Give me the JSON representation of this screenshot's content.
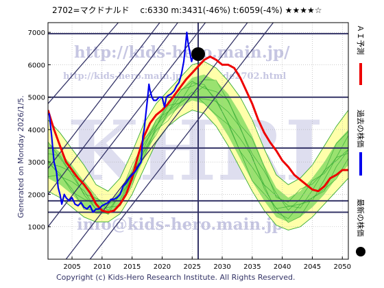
{
  "header": {
    "text": "2702=マクドナルド　 c:6330  m:3431(-46%)  t:6059(-4%)  ★★★★☆"
  },
  "side_label": "Generated on Monday 2026/1/5.",
  "footer": "Copyright (c) Kids-Hero Research Institute. All Rights Reserved.",
  "watermarks": {
    "url_top": "http://kids-hero.main.jp/",
    "url_mid": "http://kids-hero.main.jp/code/code2702.html",
    "big": "KHRI",
    "email": "info@kids-hero.main.jp"
  },
  "legend": {
    "ai": "ＡＩ予測",
    "past": "過去の株価",
    "latest": "最新の株価"
  },
  "colors": {
    "price": "#0000ee",
    "ai": "#ee0000",
    "band_outer": "#ffffaa",
    "band_inner": "#88dd66",
    "band_line": "#33aa33",
    "hline": "#333366",
    "diag": "#333366",
    "dot": "#000000",
    "grid": "#aaaaaa"
  },
  "chart_data": {
    "type": "line",
    "title": "",
    "xlabel": "",
    "ylabel": "",
    "xlim": [
      2001,
      2051
    ],
    "ylim": [
      0,
      7300
    ],
    "xticks": [
      2005,
      2010,
      2015,
      2020,
      2025,
      2030,
      2035,
      2040,
      2045,
      2050
    ],
    "yticks": [
      1000,
      2000,
      3000,
      4000,
      5000,
      6000,
      7000
    ],
    "grid": true,
    "legend_position": "right",
    "horizontal_lines": [
      6960,
      5000,
      3431,
      1800,
      1450
    ],
    "vertical_line_x": 2026.0,
    "latest_point": {
      "x": 2026.0,
      "y": 6330
    },
    "diagonal_lines": [
      {
        "p1": [
          2001,
          1000
        ],
        "p2": [
          2027.2,
          7300
        ]
      },
      {
        "p1": [
          2001,
          2000
        ],
        "p2": [
          2022.6,
          7300
        ]
      },
      {
        "p1": [
          2001,
          2800
        ],
        "p2": [
          2019.6,
          7300
        ]
      },
      {
        "p1": [
          2001,
          4800
        ],
        "p2": [
          2012.7,
          7300
        ]
      },
      {
        "p1": [
          2008,
          0
        ],
        "p2": [
          2038.5,
          7300
        ]
      },
      {
        "p1": [
          2004,
          0
        ],
        "p2": [
          2034.2,
          7300
        ]
      }
    ],
    "band_outer_upper": [
      [
        2001,
        4300
      ],
      [
        2003,
        3900
      ],
      [
        2005,
        3400
      ],
      [
        2007,
        2900
      ],
      [
        2009,
        2300
      ],
      [
        2011,
        2100
      ],
      [
        2013,
        2500
      ],
      [
        2015,
        3300
      ],
      [
        2017,
        4200
      ],
      [
        2019,
        4800
      ],
      [
        2021,
        5200
      ],
      [
        2023,
        5600
      ],
      [
        2025,
        6000
      ],
      [
        2027,
        6100
      ],
      [
        2029,
        5900
      ],
      [
        2031,
        5500
      ],
      [
        2033,
        5000
      ],
      [
        2035,
        4300
      ],
      [
        2037,
        3400
      ],
      [
        2039,
        2600
      ],
      [
        2041,
        2300
      ],
      [
        2043,
        2500
      ],
      [
        2045,
        2900
      ],
      [
        2047,
        3500
      ],
      [
        2049,
        4100
      ],
      [
        2051,
        4600
      ]
    ],
    "band_outer_lower": [
      [
        2001,
        2100
      ],
      [
        2003,
        1900
      ],
      [
        2005,
        1600
      ],
      [
        2007,
        1300
      ],
      [
        2009,
        1150
      ],
      [
        2011,
        1150
      ],
      [
        2013,
        1400
      ],
      [
        2015,
        2000
      ],
      [
        2017,
        2800
      ],
      [
        2019,
        3600
      ],
      [
        2021,
        4100
      ],
      [
        2023,
        4400
      ],
      [
        2025,
        4600
      ],
      [
        2027,
        4500
      ],
      [
        2029,
        4100
      ],
      [
        2031,
        3500
      ],
      [
        2033,
        2800
      ],
      [
        2035,
        2100
      ],
      [
        2037,
        1500
      ],
      [
        2039,
        1050
      ],
      [
        2041,
        900
      ],
      [
        2043,
        1000
      ],
      [
        2045,
        1300
      ],
      [
        2047,
        1700
      ],
      [
        2049,
        2100
      ],
      [
        2051,
        2500
      ]
    ],
    "band_inner_upper": [
      [
        2001,
        3600
      ],
      [
        2003,
        3300
      ],
      [
        2005,
        2900
      ],
      [
        2007,
        2400
      ],
      [
        2009,
        1900
      ],
      [
        2011,
        1700
      ],
      [
        2013,
        2100
      ],
      [
        2015,
        2800
      ],
      [
        2017,
        3700
      ],
      [
        2019,
        4300
      ],
      [
        2021,
        4800
      ],
      [
        2023,
        5200
      ],
      [
        2025,
        5600
      ],
      [
        2027,
        5700
      ],
      [
        2029,
        5500
      ],
      [
        2031,
        5100
      ],
      [
        2033,
        4500
      ],
      [
        2035,
        3800
      ],
      [
        2037,
        2900
      ],
      [
        2039,
        2200
      ],
      [
        2041,
        1900
      ],
      [
        2043,
        2100
      ],
      [
        2045,
        2500
      ],
      [
        2047,
        3000
      ],
      [
        2049,
        3600
      ],
      [
        2051,
        4000
      ]
    ],
    "band_inner_lower": [
      [
        2001,
        2500
      ],
      [
        2003,
        2300
      ],
      [
        2005,
        2000
      ],
      [
        2007,
        1600
      ],
      [
        2009,
        1400
      ],
      [
        2011,
        1400
      ],
      [
        2013,
        1700
      ],
      [
        2015,
        2300
      ],
      [
        2017,
        3100
      ],
      [
        2019,
        3900
      ],
      [
        2021,
        4400
      ],
      [
        2023,
        4700
      ],
      [
        2025,
        4900
      ],
      [
        2027,
        4800
      ],
      [
        2029,
        4400
      ],
      [
        2031,
        3800
      ],
      [
        2033,
        3100
      ],
      [
        2035,
        2400
      ],
      [
        2037,
        1800
      ],
      [
        2039,
        1300
      ],
      [
        2041,
        1150
      ],
      [
        2043,
        1300
      ],
      [
        2045,
        1600
      ],
      [
        2047,
        2000
      ],
      [
        2049,
        2500
      ],
      [
        2051,
        2900
      ]
    ],
    "series": [
      {
        "name": "過去の株価",
        "color": "#0000ee",
        "points": [
          [
            2001.2,
            4500
          ],
          [
            2001.6,
            3800
          ],
          [
            2002,
            3000
          ],
          [
            2002.4,
            2700
          ],
          [
            2002.7,
            2200
          ],
          [
            2003,
            2000
          ],
          [
            2003.3,
            1700
          ],
          [
            2003.7,
            2000
          ],
          [
            2004,
            1900
          ],
          [
            2004.5,
            1800
          ],
          [
            2005,
            1900
          ],
          [
            2005.5,
            1700
          ],
          [
            2006,
            1650
          ],
          [
            2006.5,
            1750
          ],
          [
            2007,
            1600
          ],
          [
            2007.5,
            1550
          ],
          [
            2008,
            1650
          ],
          [
            2008.5,
            1450
          ],
          [
            2009,
            1550
          ],
          [
            2009.5,
            1550
          ],
          [
            2010,
            1650
          ],
          [
            2010.5,
            1700
          ],
          [
            2011,
            1750
          ],
          [
            2011.5,
            1850
          ],
          [
            2012,
            1850
          ],
          [
            2012.5,
            1900
          ],
          [
            2013,
            2000
          ],
          [
            2013.5,
            2250
          ],
          [
            2014,
            2350
          ],
          [
            2014.5,
            2500
          ],
          [
            2015,
            2600
          ],
          [
            2015.5,
            2700
          ],
          [
            2016,
            2850
          ],
          [
            2016.5,
            3000
          ],
          [
            2016.8,
            3800
          ],
          [
            2017,
            4000
          ],
          [
            2017.3,
            4500
          ],
          [
            2017.6,
            5000
          ],
          [
            2017.8,
            5400
          ],
          [
            2018,
            5200
          ],
          [
            2018.3,
            5000
          ],
          [
            2018.6,
            4900
          ],
          [
            2019,
            4900
          ],
          [
            2019.5,
            5000
          ],
          [
            2020,
            5000
          ],
          [
            2020.4,
            4700
          ],
          [
            2020.7,
            5000
          ],
          [
            2021,
            5050
          ],
          [
            2021.5,
            5100
          ],
          [
            2022,
            5200
          ],
          [
            2022.4,
            5350
          ],
          [
            2022.8,
            5450
          ],
          [
            2023.2,
            5700
          ],
          [
            2023.6,
            6100
          ],
          [
            2023.9,
            6600
          ],
          [
            2024.1,
            7000
          ],
          [
            2024.3,
            6700
          ],
          [
            2024.6,
            6400
          ],
          [
            2024.9,
            6100
          ],
          [
            2025.2,
            6300
          ],
          [
            2025.5,
            6200
          ],
          [
            2025.8,
            6300
          ],
          [
            2026.0,
            6330
          ]
        ]
      },
      {
        "name": "ＡＩ予測",
        "color": "#ee0000",
        "points": [
          [
            2001,
            4600
          ],
          [
            2002,
            4000
          ],
          [
            2003,
            3500
          ],
          [
            2004,
            3000
          ],
          [
            2005,
            2750
          ],
          [
            2006,
            2500
          ],
          [
            2007,
            2300
          ],
          [
            2008,
            2050
          ],
          [
            2009,
            1700
          ],
          [
            2010,
            1500
          ],
          [
            2011,
            1450
          ],
          [
            2012,
            1500
          ],
          [
            2013,
            1700
          ],
          [
            2014,
            2000
          ],
          [
            2015,
            2500
          ],
          [
            2016,
            3200
          ],
          [
            2017,
            3800
          ],
          [
            2018,
            4200
          ],
          [
            2019,
            4450
          ],
          [
            2020,
            4600
          ],
          [
            2021,
            4800
          ],
          [
            2022,
            5050
          ],
          [
            2023,
            5300
          ],
          [
            2024,
            5550
          ],
          [
            2025,
            5750
          ],
          [
            2026,
            5950
          ],
          [
            2027,
            6150
          ],
          [
            2028,
            6250
          ],
          [
            2029,
            6150
          ],
          [
            2030,
            6000
          ],
          [
            2031,
            6000
          ],
          [
            2032,
            5900
          ],
          [
            2033,
            5600
          ],
          [
            2034,
            5200
          ],
          [
            2035,
            4800
          ],
          [
            2036,
            4300
          ],
          [
            2037,
            3900
          ],
          [
            2038,
            3600
          ],
          [
            2039,
            3350
          ],
          [
            2040,
            3050
          ],
          [
            2041,
            2850
          ],
          [
            2042,
            2600
          ],
          [
            2043,
            2450
          ],
          [
            2044,
            2300
          ],
          [
            2045,
            2150
          ],
          [
            2046,
            2100
          ],
          [
            2047,
            2250
          ],
          [
            2048,
            2500
          ],
          [
            2049,
            2600
          ],
          [
            2050,
            2750
          ],
          [
            2051,
            2750
          ]
        ]
      }
    ]
  }
}
